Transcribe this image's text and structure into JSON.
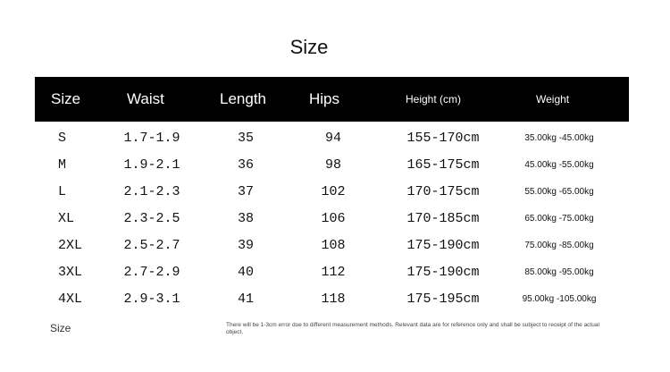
{
  "title": "Size",
  "table": {
    "headers": [
      "Size",
      "Waist",
      "Length",
      "Hips",
      "Height (cm)",
      "Weight"
    ],
    "rows": [
      [
        "S",
        "1.7-1.9",
        "35",
        "94",
        "155-170cm",
        "35.00kg -45.00kg"
      ],
      [
        "M",
        "1.9-2.1",
        "36",
        "98",
        "165-175cm",
        "45.00kg -55.00kg"
      ],
      [
        "L",
        "2.1-2.3",
        "37",
        "102",
        "170-175cm",
        "55.00kg -65.00kg"
      ],
      [
        "XL",
        "2.3-2.5",
        "38",
        "106",
        "170-185cm",
        "65.00kg -75.00kg"
      ],
      [
        "2XL",
        "2.5-2.7",
        "39",
        "108",
        "175-190cm",
        "75.00kg -85.00kg"
      ],
      [
        "3XL",
        "2.7-2.9",
        "40",
        "112",
        "175-190cm",
        "85.00kg -95.00kg"
      ],
      [
        "4XL",
        "2.9-3.1",
        "41",
        "118",
        "175-195cm",
        "95.00kg -105.00kg"
      ]
    ]
  },
  "footer_label": "Size",
  "note": "There will be 1-3cm error due to different measurement methods. Relevant data are for reference only and shall be subject to receipt of the actual object.",
  "colors": {
    "header_bg": "#000000",
    "header_text": "#ffffff"
  }
}
